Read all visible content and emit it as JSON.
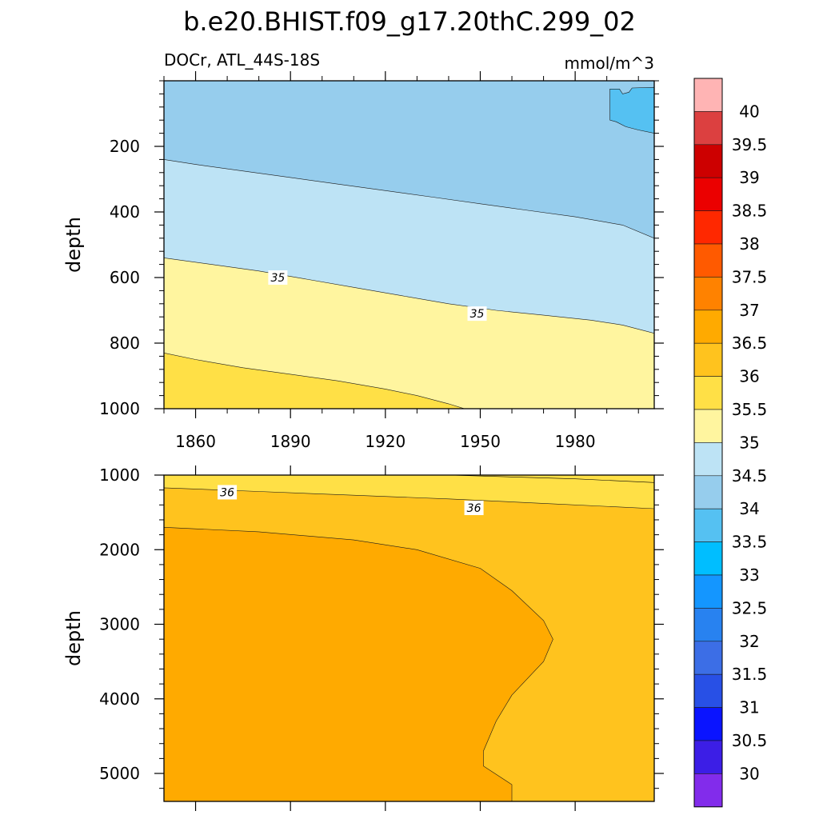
{
  "figure": {
    "title": "b.e20.BHIST.f09_g17.20thC.299_02",
    "left_string": "DOCr, ATL_44S-18S",
    "units": "mmol/m^3"
  },
  "chart_data": [
    {
      "type": "contour",
      "name": "upper-panel",
      "x_range": [
        1850,
        2005
      ],
      "ylim": [
        0,
        1000
      ],
      "y_reversed": true,
      "x_ticks": [
        1860,
        1890,
        1920,
        1950,
        1980
      ],
      "x_tick_labels": [
        "1860",
        "1890",
        "1920",
        "1950",
        "1980"
      ],
      "y_ticks": [
        200,
        400,
        600,
        800,
        1000
      ],
      "y_tick_labels": [
        "200",
        "400",
        "600",
        "800",
        "1000"
      ],
      "ylabel": "depth",
      "regions": [
        {
          "level": "34-34.5",
          "color": "#96cded",
          "boundary": [
            [
              1850,
              0
            ],
            [
              2005,
              0
            ],
            [
              2005,
              1000
            ],
            [
              1850,
              1000
            ]
          ]
        },
        {
          "level": "34.5-35",
          "color": "#bde3f5",
          "boundary": [
            [
              1850,
              240
            ],
            [
              1860,
              255
            ],
            [
              1875,
              275
            ],
            [
              1890,
              295
            ],
            [
              1905,
              315
            ],
            [
              1920,
              335
            ],
            [
              1935,
              355
            ],
            [
              1950,
              375
            ],
            [
              1965,
              395
            ],
            [
              1980,
              415
            ],
            [
              1995,
              440
            ],
            [
              2005,
              480
            ],
            [
              2005,
              1000
            ],
            [
              1850,
              1000
            ]
          ]
        },
        {
          "level": "35-35.5",
          "color": "#fff59f",
          "boundary": [
            [
              1850,
              540
            ],
            [
              1865,
              560
            ],
            [
              1880,
              580
            ],
            [
              1895,
              605
            ],
            [
              1910,
              630
            ],
            [
              1925,
              655
            ],
            [
              1940,
              680
            ],
            [
              1955,
              700
            ],
            [
              1970,
              715
            ],
            [
              1985,
              730
            ],
            [
              1995,
              745
            ],
            [
              2005,
              770
            ],
            [
              2005,
              1000
            ],
            [
              1850,
              1000
            ]
          ]
        },
        {
          "level": "35.5-36",
          "color": "#ffe046",
          "boundary": [
            [
              1850,
              830
            ],
            [
              1860,
              850
            ],
            [
              1875,
              875
            ],
            [
              1890,
              895
            ],
            [
              1905,
              915
            ],
            [
              1920,
              940
            ],
            [
              1930,
              960
            ],
            [
              1940,
              985
            ],
            [
              1945,
              1000
            ],
            [
              1850,
              1000
            ]
          ]
        },
        {
          "level": "33.5-34",
          "color": "#55c1f2",
          "boundary": [
            [
              1991,
              25
            ],
            [
              1994,
              25
            ],
            [
              1995,
              40
            ],
            [
              1997,
              35
            ],
            [
              1998,
              22
            ],
            [
              2005,
              20
            ],
            [
              2005,
              160
            ],
            [
              2000,
              150
            ],
            [
              1996,
              140
            ],
            [
              1993,
              125
            ],
            [
              1991,
              120
            ],
            [
              1991,
              60
            ]
          ]
        }
      ],
      "contour_labels": [
        {
          "text": "35",
          "x": 1886,
          "y": 600
        },
        {
          "text": "35",
          "x": 1949,
          "y": 710
        }
      ]
    },
    {
      "type": "contour",
      "name": "lower-panel",
      "x_range": [
        1850,
        2005
      ],
      "ylim": [
        1000,
        5375
      ],
      "y_reversed": true,
      "y_ticks": [
        1000,
        2000,
        3000,
        4000,
        5000
      ],
      "y_tick_labels": [
        "1000",
        "2000",
        "3000",
        "4000",
        "5000"
      ],
      "ylabel": "depth",
      "regions": [
        {
          "level": "35.5-36",
          "color": "#ffe046",
          "boundary": [
            [
              1850,
              1000
            ],
            [
              2005,
              1000
            ],
            [
              2005,
              5375
            ],
            [
              1850,
              5375
            ]
          ]
        },
        {
          "level": "36-36.5",
          "color": "#ffc31e",
          "boundary": [
            [
              1850,
              1170
            ],
            [
              1880,
              1220
            ],
            [
              1910,
              1270
            ],
            [
              1940,
              1320
            ],
            [
              1970,
              1380
            ],
            [
              2005,
              1450
            ],
            [
              2005,
              5375
            ],
            [
              1850,
              5375
            ]
          ]
        },
        {
          "level": "36.5-37",
          "color": "#ffaa00",
          "boundary": [
            [
              1850,
              1700
            ],
            [
              1880,
              1760
            ],
            [
              1910,
              1870
            ],
            [
              1930,
              2000
            ],
            [
              1950,
              2250
            ],
            [
              1960,
              2550
            ],
            [
              1970,
              2950
            ],
            [
              1973,
              3200
            ],
            [
              1970,
              3500
            ],
            [
              1960,
              3950
            ],
            [
              1955,
              4300
            ],
            [
              1951,
              4700
            ],
            [
              1951,
              4900
            ],
            [
              1960,
              5150
            ],
            [
              1960,
              5375
            ],
            [
              1850,
              5375
            ]
          ]
        }
      ],
      "extra_lines": [
        {
          "color": "#000000",
          "points": [
            [
              1940,
              1000
            ],
            [
              1980,
              1050
            ],
            [
              2005,
              1100
            ]
          ]
        }
      ],
      "contour_labels": [
        {
          "text": "36",
          "x": 1870,
          "y": 1230
        },
        {
          "text": "36",
          "x": 1948,
          "y": 1440
        }
      ]
    },
    {
      "type": "colorbar",
      "name": "colorbar",
      "orientation": "vertical",
      "levels": [
        "40",
        "39.5",
        "39",
        "38.5",
        "38",
        "37.5",
        "37",
        "36.5",
        "36",
        "35.5",
        "35",
        "34.5",
        "34",
        "33.5",
        "33",
        "32.5",
        "32",
        "31.5",
        "31",
        "30.5",
        "30"
      ],
      "colors": [
        "#ffb4b4",
        "#dc4040",
        "#cd0000",
        "#eb0000",
        "#ff2800",
        "#ff5a00",
        "#ff8200",
        "#ffaa00",
        "#ffc31e",
        "#ffe046",
        "#fff59f",
        "#bde3f5",
        "#96cded",
        "#55c1f2",
        "#00beff",
        "#1496ff",
        "#2882f0",
        "#3c6ee6",
        "#2850e6",
        "#0a14ff",
        "#3c1ee6",
        "#822ceb"
      ]
    }
  ]
}
